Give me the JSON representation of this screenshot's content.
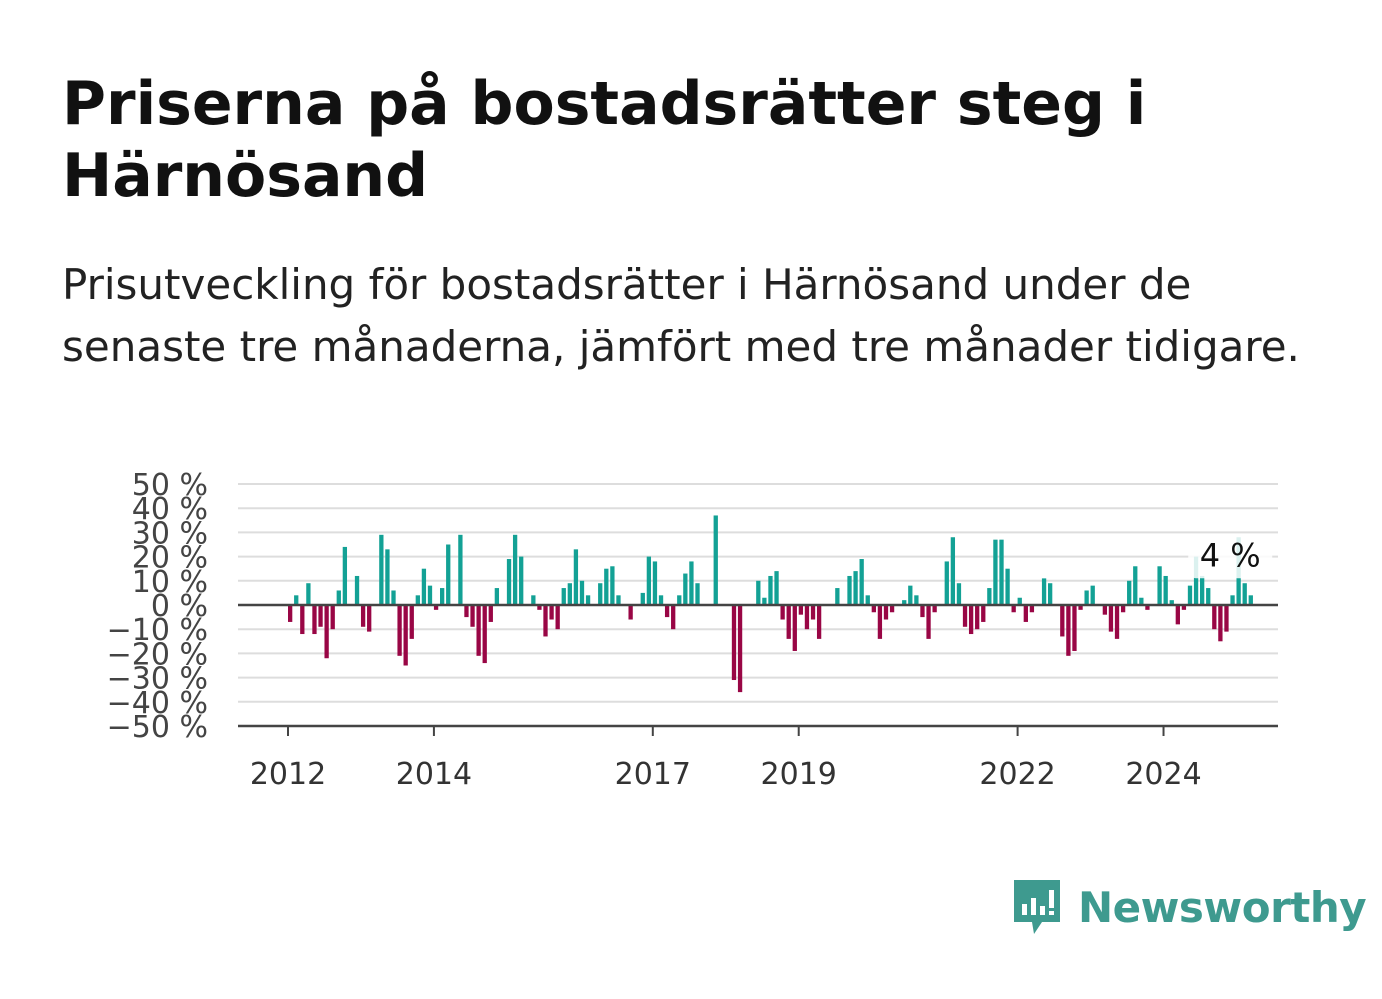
{
  "title": "Priserna på bostadsrätter steg i Härnösand",
  "subtitle": "Prisutveckling för bostadsrätter i Härnösand under de senaste tre månaderna, jämfört med tre månader tidigare.",
  "brand": {
    "name": "Newsworthy",
    "color": "#3e9a8f"
  },
  "colors": {
    "positive": "#13a195",
    "negative": "#990645",
    "grid": "#dddddd",
    "axis": "#444444"
  },
  "chart_data": {
    "type": "bar",
    "ylim": [
      -50,
      50
    ],
    "yticks": [
      50,
      40,
      30,
      20,
      10,
      0,
      -10,
      -20,
      -30,
      -40,
      -50
    ],
    "ytick_labels": [
      "50 %",
      "40 %",
      "30 %",
      "20 %",
      "10 %",
      "0 %",
      "−10 %",
      "−20 %",
      "−30 %",
      "−40 %",
      "−50 %"
    ],
    "xticks": [
      "2012",
      "2014",
      "2017",
      "2019",
      "2022",
      "2024"
    ],
    "x_start": "2012-01",
    "annotation": {
      "text": "4 %",
      "index": 153
    },
    "series": [
      {
        "values": [
          -7,
          4,
          -12,
          9,
          -12,
          -9,
          -22,
          -10,
          6,
          24,
          0,
          12,
          -9,
          -11,
          0,
          29,
          23,
          6,
          -21,
          -25,
          -14,
          4,
          15,
          8,
          -2,
          7,
          25,
          0,
          29,
          -5,
          -9,
          -21,
          -24,
          -7,
          7,
          0,
          19,
          29,
          20,
          0,
          4,
          -2,
          -13,
          -6,
          -10,
          7,
          9,
          23,
          10,
          4,
          0,
          9,
          15,
          16,
          4,
          0,
          -6,
          0,
          5,
          20,
          18,
          4,
          -5,
          -10,
          4,
          13,
          18,
          9,
          0,
          0,
          37,
          0,
          0,
          -31,
          -36,
          0,
          0,
          10,
          3,
          12,
          14,
          -6,
          -14,
          -19,
          -4,
          -10,
          -6,
          -14,
          0,
          0,
          7,
          0,
          12,
          14,
          19,
          4,
          -3,
          -14,
          -6,
          -3,
          0,
          2,
          8,
          4,
          -5,
          -14,
          -3,
          0,
          18,
          28,
          9,
          -9,
          -12,
          -10,
          -7,
          7,
          27,
          27,
          15,
          -3,
          3,
          -7,
          -3,
          0,
          11,
          9,
          0,
          -13,
          -21,
          -19,
          -2,
          6,
          8,
          0,
          -4,
          -11,
          -14,
          -3,
          10,
          16,
          3,
          -2,
          0,
          16,
          12,
          2,
          -8,
          -2,
          8,
          20,
          12,
          7,
          -10,
          -15,
          -11,
          4,
          28,
          9,
          4
        ]
      }
    ]
  }
}
